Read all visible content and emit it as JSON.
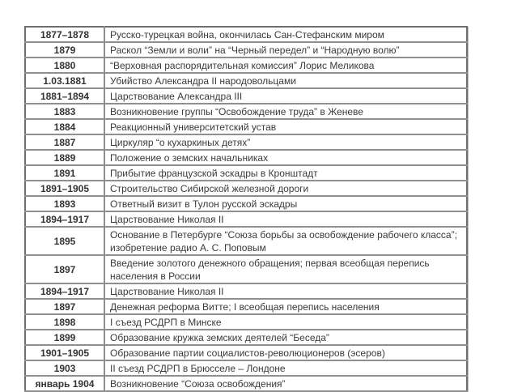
{
  "rows": [
    {
      "date": "1877–1878",
      "event": "Русско-турецкая война, окончилась Сан-Стефанским миром"
    },
    {
      "date": "1879",
      "event": "Раскол “Земли и воли” на “Черный передел” и “Народную волю”"
    },
    {
      "date": "1880",
      "event": "“Верховная распорядительная комиссия” Лорис Меликова"
    },
    {
      "date": "1.03.1881",
      "event": "Убийство Александра II народовольцами"
    },
    {
      "date": "1881–1894",
      "event": "Царствование Александра III"
    },
    {
      "date": "1883",
      "event": "Возникновение группы “Освобождение труда” в Женеве"
    },
    {
      "date": "1884",
      "event": "Реакционный университетский устав"
    },
    {
      "date": "1887",
      "event": "Циркуляр “о кухаркиных детях”"
    },
    {
      "date": "1889",
      "event": "Положение о земских начальниках"
    },
    {
      "date": "1891",
      "event": "Прибытие французской эскадры в Кронштадт"
    },
    {
      "date": "1891–1905",
      "event": "Строительство Сибирской железной дороги"
    },
    {
      "date": "1893",
      "event": "Ответный визит в Тулон русской эскадры"
    },
    {
      "date": "1894–1917",
      "event": "Царствование Николая II"
    },
    {
      "date": "1895",
      "event": "Основание в Петербурге “Союза борьбы за освобождение рабочего класса”; изобретение радио А. С. Поповым"
    },
    {
      "date": "1897",
      "event": "Введение золотого денежного обращения; первая всеобщая перепись населения в России"
    },
    {
      "date": "1894–1917",
      "event": "Царствование Николая II"
    },
    {
      "date": "1897",
      "event": "Денежная реформа Витте; I всеобщая перепись населения"
    },
    {
      "date": "1898",
      "event": "I съезд РСДРП в Минске"
    },
    {
      "date": "1899",
      "event": "Образование кружка земских деятелей “Беседа”"
    },
    {
      "date": "1901–1905",
      "event": "Образование партии социалистов-революционеров (эсеров)"
    },
    {
      "date": "1903",
      "event": "II съезд РСДРП в Брюсселе – Лондоне"
    },
    {
      "date": "январь 1904",
      "event": "Возникновение “Союза освобождения”"
    }
  ]
}
